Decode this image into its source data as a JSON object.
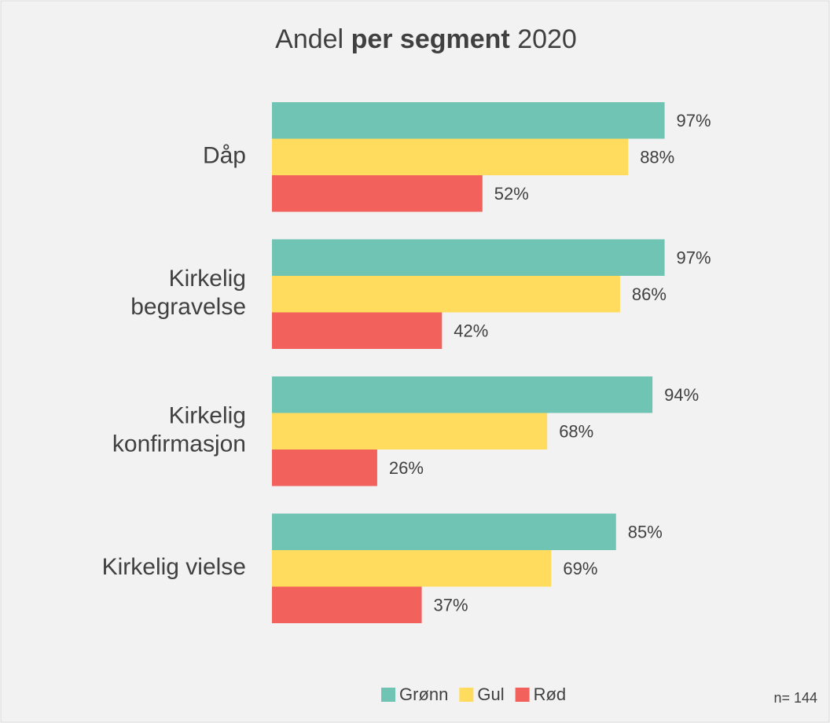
{
  "chart_data": {
    "type": "barh",
    "title": [
      "Andel",
      "per segment",
      "2020"
    ],
    "categories": [
      [
        "Dåp"
      ],
      [
        "Kirkelig",
        "begravelse"
      ],
      [
        "Kirkelig",
        "konfirmasjon"
      ],
      [
        "Kirkelig vielse"
      ]
    ],
    "series": [
      {
        "name": "Grønn",
        "color": "#70c4b4",
        "values": [
          97,
          97,
          94,
          85
        ],
        "value_labels": [
          "97%",
          "97%",
          "94%",
          "85%"
        ]
      },
      {
        "name": "Gul",
        "color": "#ffdc5e",
        "values": [
          88,
          86,
          68,
          69
        ],
        "value_labels": [
          "88%",
          "86%",
          "68%",
          "69%"
        ]
      },
      {
        "name": "Rød",
        "color": "#f2615b",
        "values": [
          52,
          42,
          26,
          37
        ],
        "value_labels": [
          "52%",
          "42%",
          "26%",
          "37%"
        ]
      }
    ],
    "xlim": [
      0,
      100
    ],
    "legend": "bottom",
    "annotation": "n= 144"
  }
}
